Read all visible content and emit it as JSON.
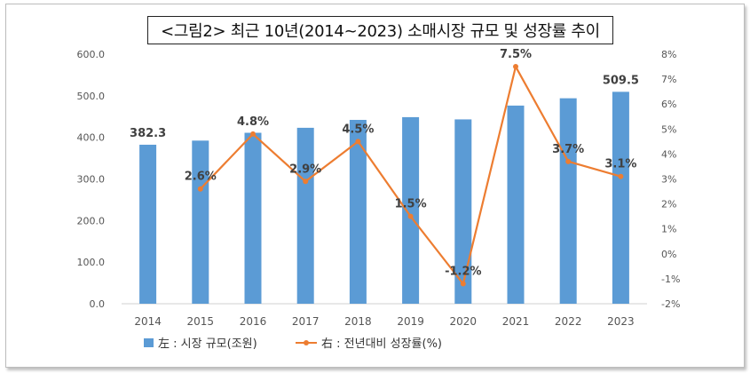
{
  "chart_data": {
    "type": "bar+line",
    "title": "<그림2> 최근 10년(2014~2023) 소매시장 규모 및 성장률 추이",
    "categories": [
      "2014",
      "2015",
      "2016",
      "2017",
      "2018",
      "2019",
      "2020",
      "2021",
      "2022",
      "2023"
    ],
    "series": [
      {
        "name": "左 : 시장 규모(조원)",
        "type": "bar",
        "axis": "left",
        "color": "#5b9bd5",
        "values": [
          382.3,
          392.2,
          411.0,
          423.0,
          442.0,
          448.6,
          443.2,
          476.4,
          494.0,
          509.5
        ],
        "data_labels": {
          "0": "382.3",
          "9": "509.5"
        }
      },
      {
        "name": "右 : 전년대비 성장률(%)",
        "type": "line",
        "axis": "right",
        "color": "#ed7d31",
        "values": [
          null,
          2.6,
          4.8,
          2.9,
          4.5,
          1.5,
          -1.2,
          7.5,
          3.7,
          3.1
        ],
        "data_labels": [
          "",
          "2.6%",
          "4.8%",
          "2.9%",
          "4.5%",
          "1.5%",
          "-1.2%",
          "7.5%",
          "3.7%",
          "3.1%"
        ]
      }
    ],
    "y_left": {
      "ylim": [
        0,
        600
      ],
      "ticks": [
        "0.0",
        "100.0",
        "200.0",
        "300.0",
        "400.0",
        "500.0",
        "600.0"
      ]
    },
    "y_right": {
      "ylim": [
        -2,
        8
      ],
      "ticks": [
        "-2%",
        "-1%",
        "0%",
        "1%",
        "2%",
        "3%",
        "4%",
        "5%",
        "6%",
        "7%",
        "8%"
      ]
    },
    "grid": false,
    "legend_position": "bottom"
  }
}
